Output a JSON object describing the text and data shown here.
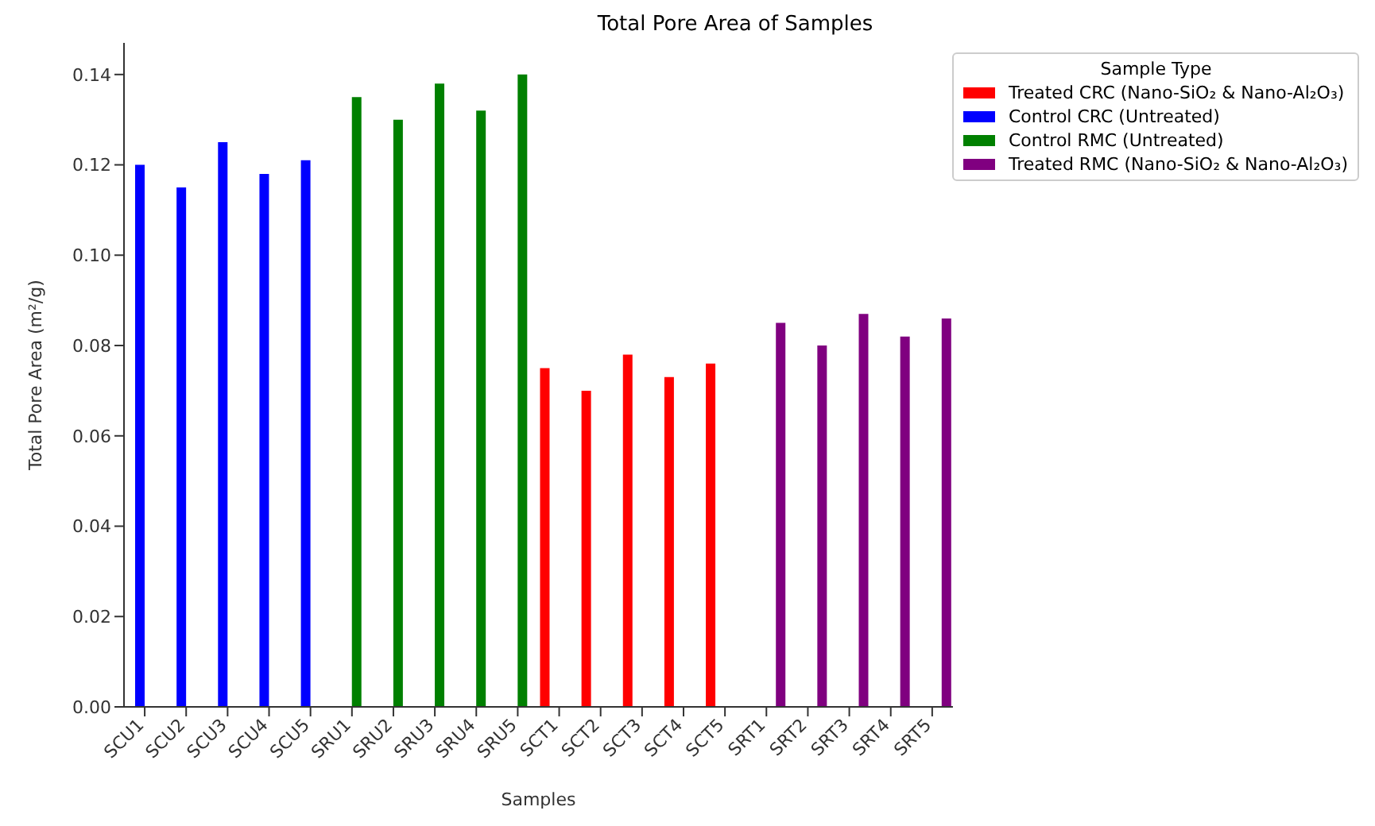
{
  "chart_data": {
    "type": "bar",
    "title": "Total Pore Area of Samples",
    "xlabel": "Samples",
    "ylabel": "Total Pore Area (m²/g)",
    "legend_title": "Sample Type",
    "legend": "top right",
    "grid": false,
    "categories": [
      "SCU1",
      "SCU2",
      "SCU3",
      "SCU4",
      "SCU5",
      "SRU1",
      "SRU2",
      "SRU3",
      "SRU4",
      "SRU5",
      "SCT1",
      "SCT2",
      "SCT3",
      "SCT4",
      "SCT5",
      "SRT1",
      "SRT2",
      "SRT3",
      "SRT4",
      "SRT5"
    ],
    "ylim": [
      0,
      0.147
    ],
    "yticks": [
      {
        "value": 0,
        "label": "0.00"
      },
      {
        "value": 0.02,
        "label": "0.02"
      },
      {
        "value": 0.04,
        "label": "0.04"
      },
      {
        "value": 0.06,
        "label": "0.06"
      },
      {
        "value": 0.08,
        "label": "0.08"
      },
      {
        "value": 0.1,
        "label": "0.10"
      },
      {
        "value": 0.12,
        "label": "0.12"
      },
      {
        "value": 0.14,
        "label": "0.14"
      }
    ],
    "series": [
      {
        "name": "Treated CRC (Nano-SiO₂ & Nano-Al₂O₃)",
        "color": "#ff0000",
        "values": [
          null,
          null,
          null,
          null,
          null,
          null,
          null,
          null,
          null,
          null,
          0.075,
          0.07,
          0.078,
          0.073,
          0.076,
          null,
          null,
          null,
          null,
          null
        ]
      },
      {
        "name": "Control CRC (Untreated)",
        "color": "#0000ff",
        "values": [
          0.12,
          0.115,
          0.125,
          0.118,
          0.121,
          null,
          null,
          null,
          null,
          null,
          null,
          null,
          null,
          null,
          null,
          null,
          null,
          null,
          null,
          null
        ]
      },
      {
        "name": "Control RMC (Untreated)",
        "color": "#008000",
        "values": [
          null,
          null,
          null,
          null,
          null,
          0.135,
          0.13,
          0.138,
          0.132,
          0.14,
          null,
          null,
          null,
          null,
          null,
          null,
          null,
          null,
          null,
          null
        ]
      },
      {
        "name": "Treated RMC (Nano-SiO₂ & Nano-Al₂O₃)",
        "color": "#800080",
        "values": [
          null,
          null,
          null,
          null,
          null,
          null,
          null,
          null,
          null,
          null,
          null,
          null,
          null,
          null,
          null,
          0.085,
          0.08,
          0.087,
          0.082,
          0.086
        ]
      }
    ]
  }
}
